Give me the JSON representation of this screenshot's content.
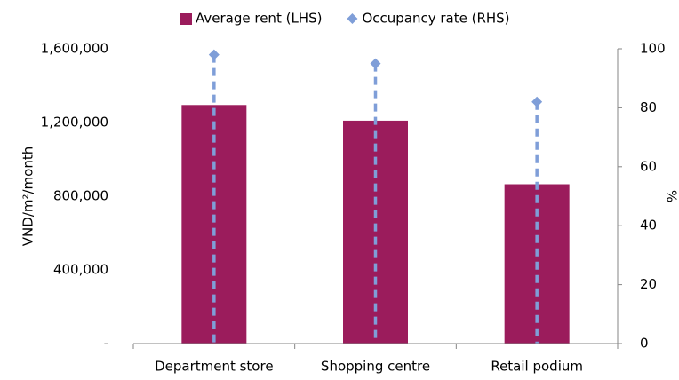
{
  "chart_data": {
    "type": "bar",
    "categories": [
      "Department store",
      "Shopping centre",
      "Retail podium"
    ],
    "series": [
      {
        "name": "Average rent (LHS)",
        "type": "bar",
        "color": "#9b1c5c",
        "values": [
          1295000,
          1210000,
          865000
        ]
      },
      {
        "name": "Occupancy rate (RHS)",
        "type": "line",
        "axis": "y2",
        "color": "#7f9ed8",
        "values": [
          98,
          95,
          82
        ]
      }
    ],
    "ylabel": "VND/m²/month",
    "y2label": "%",
    "ylim": [
      0,
      1600000
    ],
    "yticks": [
      {
        "value": 0,
        "label": "-"
      },
      {
        "value": 400000,
        "label": "400,000"
      },
      {
        "value": 800000,
        "label": "800,000"
      },
      {
        "value": 1200000,
        "label": "1,200,000"
      },
      {
        "value": 1600000,
        "label": "1,600,000"
      }
    ],
    "y2lim": [
      0,
      100
    ],
    "y2ticks": [
      0,
      20,
      40,
      60,
      80,
      100
    ],
    "legend": "top"
  }
}
